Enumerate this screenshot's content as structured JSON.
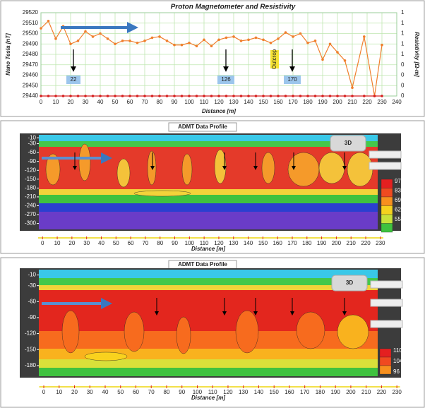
{
  "chart_data": [
    {
      "type": "line",
      "title": "Proton Magnetometer and Resistivity",
      "x_label": "Distance [m]",
      "y_label": "Nano Tesla [nT]",
      "y2_label": "Resistivity [Ω-m]",
      "x": [
        0,
        5,
        10,
        15,
        20,
        25,
        30,
        35,
        40,
        45,
        50,
        55,
        60,
        65,
        70,
        75,
        80,
        85,
        90,
        95,
        100,
        105,
        110,
        115,
        120,
        125,
        130,
        135,
        140,
        145,
        150,
        155,
        160,
        165,
        170,
        175,
        180,
        185,
        190,
        195,
        200,
        205,
        210,
        218,
        225,
        230
      ],
      "series": [
        {
          "color": "#f07f2d",
          "values": [
            29505,
            29512,
            29495,
            29507,
            29490,
            29493,
            29502,
            29497,
            29500,
            29495,
            29490,
            29493,
            29493,
            29491,
            29493,
            29496,
            29497,
            29493,
            29489,
            29489,
            29491,
            29488,
            29494,
            29488,
            29494,
            29496,
            29497,
            29493,
            29494,
            29496,
            29494,
            29491,
            29495,
            29501,
            29497,
            29500,
            29491,
            29493,
            29475,
            29490,
            29482,
            29474,
            29448,
            29497,
            29440,
            29489
          ]
        },
        {
          "color": "#d62020",
          "axis": "y2",
          "values": [
            0,
            0,
            0,
            0,
            0,
            0,
            0,
            0,
            0,
            0,
            0,
            0,
            0,
            0,
            0,
            0,
            0,
            0,
            0,
            0,
            0,
            0,
            0,
            0,
            0,
            0,
            0,
            0,
            0,
            0,
            0,
            0,
            0,
            0,
            0,
            0,
            0,
            0,
            0,
            0,
            0,
            0,
            0,
            0,
            0,
            0
          ]
        }
      ],
      "xlim": [
        0,
        240
      ],
      "xticks": [
        0,
        10,
        20,
        30,
        40,
        50,
        60,
        70,
        80,
        90,
        100,
        110,
        120,
        130,
        140,
        150,
        160,
        170,
        180,
        190,
        200,
        210,
        220,
        230,
        240
      ],
      "ylim": [
        29440,
        29520
      ],
      "yticks": [
        29440,
        29450,
        29460,
        29470,
        29480,
        29490,
        29500,
        29510,
        29520
      ],
      "y2lim": [
        0,
        1
      ],
      "y2ticks": [
        0,
        {
          "value": 0.125,
          "label": "0"
        },
        {
          "value": 0.25,
          "label": "0"
        },
        {
          "value": 0.375,
          "label": "0"
        },
        {
          "value": 0.5,
          "label": "1"
        },
        {
          "value": 0.625,
          "label": "1"
        },
        {
          "value": 0.75,
          "label": "1"
        },
        {
          "value": 0.875,
          "label": "1"
        },
        1
      ],
      "grid": true,
      "annotations": [
        "22",
        "126",
        "Outcrop",
        "170"
      ]
    },
    {
      "type": "contour",
      "title": "ADMT Data Profile",
      "x_label": "Distance [m]",
      "xlim": [
        -3,
        232
      ],
      "xticks": [
        0,
        10,
        20,
        30,
        40,
        50,
        60,
        70,
        80,
        90,
        100,
        110,
        120,
        130,
        140,
        150,
        160,
        170,
        180,
        190,
        200,
        210,
        220,
        230
      ],
      "ylim": [
        0,
        -320
      ],
      "yticks": [
        -10,
        -30,
        -60,
        -90,
        -120,
        -150,
        -180,
        -210,
        -240,
        -270,
        -300
      ],
      "colorbar_ticks": [
        97,
        83,
        69,
        62,
        55
      ],
      "annotations": [
        "3D"
      ]
    },
    {
      "type": "contour",
      "title": "ADMT Data Profile",
      "x_label": "Distance [m]",
      "xlim": [
        -3,
        232
      ],
      "xticks": [
        0,
        10,
        20,
        30,
        40,
        50,
        60,
        70,
        80,
        90,
        100,
        110,
        120,
        130,
        140,
        150,
        160,
        170,
        180,
        190,
        200,
        210,
        220,
        230
      ],
      "ylim": [
        0,
        -200
      ],
      "yticks": [
        -10,
        -30,
        -60,
        -90,
        -120,
        -150,
        -180
      ],
      "colorbar_ticks": [
        110,
        104,
        96
      ],
      "annotations": [
        "3D"
      ]
    }
  ]
}
